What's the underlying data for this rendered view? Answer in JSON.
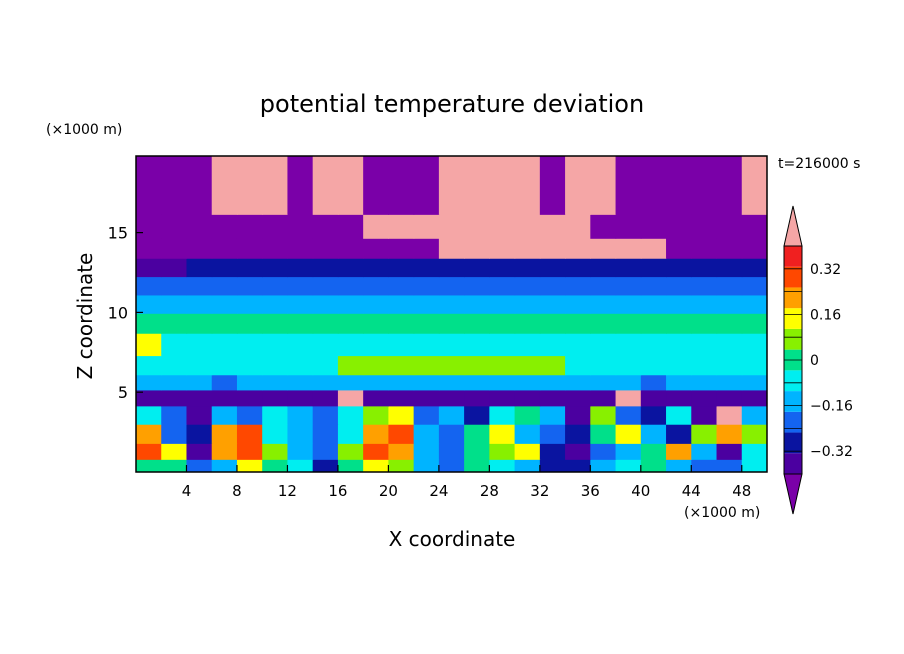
{
  "chart_data": {
    "type": "heatmap",
    "title": "potential temperature deviation",
    "xlabel": "X coordinate",
    "ylabel": "Z coordinate",
    "x_units": "(×1000 m)",
    "y_units": "(×1000 m)",
    "time_label": "t=216000 s",
    "xlim": [
      0,
      50
    ],
    "ylim": [
      0,
      19.8
    ],
    "x_ticks": [
      4,
      8,
      12,
      16,
      20,
      24,
      28,
      32,
      36,
      40,
      44,
      48
    ],
    "y_ticks": [
      5,
      10,
      15
    ],
    "colorbar": {
      "levels": [
        -0.4,
        -0.32,
        -0.24,
        -0.16,
        -0.08,
        0,
        0.08,
        0.16,
        0.24,
        0.32,
        0.4
      ],
      "tick_labels": [
        "0.32",
        "0.16",
        "0",
        "−0.16",
        "−0.32"
      ],
      "tick_values": [
        0.32,
        0.16,
        0,
        -0.16,
        -0.32
      ],
      "extend": "both",
      "colors": [
        "#7a00a8",
        "#4b00a0",
        "#0a14a0",
        "#1464f0",
        "#00b4ff",
        "#00eef0",
        "#00e08a",
        "#88f000",
        "#ffff00",
        "#ffa000",
        "#ff4800",
        "#f02020",
        "#f5a6a6"
      ]
    },
    "rows": [
      {
        "z": 17.0,
        "values": [
          -0.48,
          -0.48,
          -0.48,
          0.48,
          0.48,
          0.48,
          -0.48,
          0.48,
          0.48,
          -0.48,
          -0.48,
          -0.48,
          0.48,
          0.48,
          0.48,
          0.48,
          -0.48,
          0.48,
          0.48,
          -0.48,
          -0.48,
          -0.48,
          -0.48,
          -0.48,
          0.48
        ]
      },
      {
        "z": 15.3,
        "values": [
          -0.48,
          -0.48,
          -0.48,
          -0.48,
          -0.48,
          -0.48,
          -0.48,
          -0.48,
          -0.48,
          0.48,
          0.48,
          0.48,
          0.48,
          0.48,
          0.48,
          0.48,
          0.48,
          0.48,
          -0.48,
          -0.48,
          -0.48,
          -0.48,
          -0.48,
          -0.48,
          -0.48
        ]
      },
      {
        "z": 14.0,
        "values": [
          -0.48,
          -0.48,
          -0.48,
          -0.48,
          -0.48,
          -0.48,
          -0.48,
          -0.48,
          -0.48,
          -0.48,
          -0.48,
          -0.48,
          0.48,
          0.48,
          0.48,
          0.48,
          0.48,
          0.48,
          0.48,
          0.48,
          0.48,
          -0.48,
          -0.48,
          -0.48,
          -0.48
        ]
      },
      {
        "z": 12.8,
        "values": [
          -0.36,
          -0.36,
          -0.28,
          -0.28,
          -0.28,
          -0.28,
          -0.28,
          -0.28,
          -0.28,
          -0.28,
          -0.28,
          -0.28,
          -0.28,
          -0.28,
          -0.28,
          -0.28,
          -0.28,
          -0.28,
          -0.28,
          -0.28,
          -0.28,
          -0.28,
          -0.28,
          -0.28,
          -0.28
        ]
      },
      {
        "z": 11.7,
        "values": [
          -0.2,
          -0.2,
          -0.2,
          -0.2,
          -0.2,
          -0.2,
          -0.2,
          -0.2,
          -0.2,
          -0.2,
          -0.2,
          -0.2,
          -0.2,
          -0.2,
          -0.2,
          -0.2,
          -0.2,
          -0.2,
          -0.2,
          -0.2,
          -0.2,
          -0.2,
          -0.2,
          -0.2,
          -0.2
        ]
      },
      {
        "z": 10.5,
        "values": [
          -0.12,
          -0.12,
          -0.12,
          -0.12,
          -0.12,
          -0.12,
          -0.12,
          -0.12,
          -0.12,
          -0.12,
          -0.12,
          -0.12,
          -0.12,
          -0.12,
          -0.12,
          -0.12,
          -0.12,
          -0.12,
          -0.12,
          -0.12,
          -0.12,
          -0.12,
          -0.12,
          -0.12,
          -0.12
        ]
      },
      {
        "z": 9.4,
        "values": [
          0.04,
          0.04,
          0.04,
          0.04,
          0.04,
          0.04,
          0.04,
          0.04,
          0.04,
          0.04,
          0.04,
          0.04,
          0.04,
          0.04,
          0.04,
          0.04,
          0.04,
          0.04,
          0.04,
          0.04,
          0.04,
          0.04,
          0.04,
          0.04,
          0.04
        ]
      },
      {
        "z": 8.0,
        "values": [
          0.2,
          -0.04,
          -0.04,
          -0.04,
          -0.04,
          -0.04,
          -0.04,
          -0.04,
          -0.04,
          -0.04,
          -0.04,
          -0.04,
          -0.04,
          -0.04,
          -0.04,
          -0.04,
          -0.04,
          -0.04,
          -0.04,
          -0.04,
          -0.04,
          -0.04,
          -0.04,
          -0.04,
          -0.04
        ]
      },
      {
        "z": 6.6,
        "values": [
          -0.04,
          -0.04,
          -0.04,
          -0.04,
          -0.04,
          -0.04,
          -0.04,
          -0.04,
          0.12,
          0.12,
          0.12,
          0.12,
          0.12,
          0.12,
          0.12,
          0.12,
          0.12,
          -0.04,
          -0.04,
          -0.04,
          -0.04,
          -0.04,
          -0.04,
          -0.04,
          -0.04
        ]
      },
      {
        "z": 5.6,
        "values": [
          -0.12,
          -0.12,
          -0.12,
          -0.2,
          -0.12,
          -0.12,
          -0.12,
          -0.12,
          -0.12,
          -0.12,
          -0.12,
          -0.12,
          -0.12,
          -0.12,
          -0.12,
          -0.12,
          -0.12,
          -0.12,
          -0.12,
          -0.12,
          -0.2,
          -0.12,
          -0.12,
          -0.12,
          -0.12
        ]
      },
      {
        "z": 4.7,
        "values": [
          -0.36,
          -0.36,
          -0.36,
          -0.36,
          -0.36,
          -0.36,
          -0.36,
          -0.36,
          0.48,
          -0.36,
          -0.36,
          -0.36,
          -0.36,
          -0.36,
          -0.36,
          -0.36,
          -0.36,
          -0.36,
          -0.36,
          0.48,
          -0.36,
          -0.36,
          -0.36,
          -0.36,
          -0.36
        ]
      },
      {
        "z": 3.6,
        "values": [
          -0.04,
          -0.2,
          -0.36,
          -0.12,
          -0.2,
          -0.04,
          -0.12,
          -0.2,
          -0.04,
          0.12,
          0.2,
          -0.2,
          -0.12,
          -0.28,
          -0.04,
          0.04,
          -0.12,
          -0.36,
          0.12,
          -0.2,
          -0.28,
          -0.04,
          -0.36,
          0.48,
          -0.12
        ]
      },
      {
        "z": 2.4,
        "values": [
          0.28,
          -0.2,
          -0.28,
          0.24,
          0.36,
          -0.04,
          -0.12,
          -0.2,
          -0.04,
          0.28,
          0.36,
          -0.12,
          -0.2,
          0.04,
          0.2,
          -0.12,
          -0.2,
          -0.28,
          0.04,
          0.2,
          -0.12,
          -0.28,
          0.12,
          0.28,
          0.12
        ]
      },
      {
        "z": 1.2,
        "values": [
          0.36,
          0.2,
          -0.36,
          0.28,
          0.36,
          0.12,
          -0.12,
          -0.2,
          0.12,
          0.36,
          0.28,
          -0.12,
          -0.2,
          0.04,
          0.12,
          0.2,
          -0.28,
          -0.36,
          -0.2,
          -0.12,
          0.04,
          0.28,
          -0.12,
          -0.36,
          -0.04
        ]
      },
      {
        "z": 0.4,
        "values": [
          0.04,
          0.04,
          -0.2,
          -0.12,
          0.2,
          0.04,
          -0.04,
          -0.28,
          0.04,
          0.2,
          0.12,
          -0.12,
          -0.2,
          0.04,
          -0.04,
          -0.12,
          -0.28,
          -0.28,
          -0.12,
          -0.04,
          0.04,
          -0.12,
          -0.2,
          -0.2,
          -0.04
        ]
      }
    ]
  }
}
